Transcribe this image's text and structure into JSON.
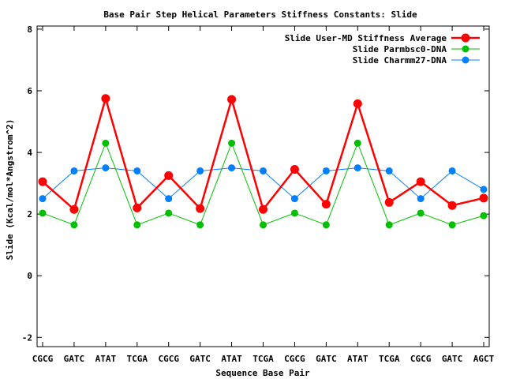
{
  "chart_data": {
    "type": "line",
    "title": "Base Pair Step Helical Parameters Stiffness Constants: Slide",
    "xlabel": "Sequence Base Pair",
    "ylabel": "Slide (Kcal/mol*Angstrom^2)",
    "categories": [
      "CGCG",
      "GATC",
      "ATAT",
      "TCGA",
      "CGCG",
      "GATC",
      "ATAT",
      "TCGA",
      "CGCG",
      "GATC",
      "ATAT",
      "TCGA",
      "CGCG",
      "GATC",
      "AGCT"
    ],
    "ylim": [
      -2.3,
      8.1
    ],
    "yticks": [
      "-2",
      "0",
      "2",
      "4",
      "6",
      "8"
    ],
    "grid": false,
    "legend_position": "top-right",
    "series": [
      {
        "name": "Slide User-MD Stiffness Average",
        "color": "#ff0000",
        "values": [
          3.05,
          2.15,
          5.75,
          2.2,
          3.25,
          2.18,
          5.72,
          2.15,
          3.45,
          2.32,
          5.58,
          2.38,
          3.05,
          2.28,
          2.52
        ]
      },
      {
        "name": "Slide Parmbsc0-DNA",
        "color": "#00c000",
        "values": [
          2.03,
          1.65,
          4.3,
          1.65,
          2.03,
          1.65,
          4.3,
          1.65,
          2.03,
          1.65,
          4.3,
          1.65,
          2.03,
          1.65,
          1.95
        ]
      },
      {
        "name": "Slide Charmm27-DNA",
        "color": "#0080ff",
        "values": [
          2.5,
          3.4,
          3.5,
          3.4,
          2.5,
          3.4,
          3.5,
          3.4,
          2.5,
          3.4,
          3.5,
          3.4,
          2.5,
          3.4,
          2.8
        ]
      }
    ]
  }
}
